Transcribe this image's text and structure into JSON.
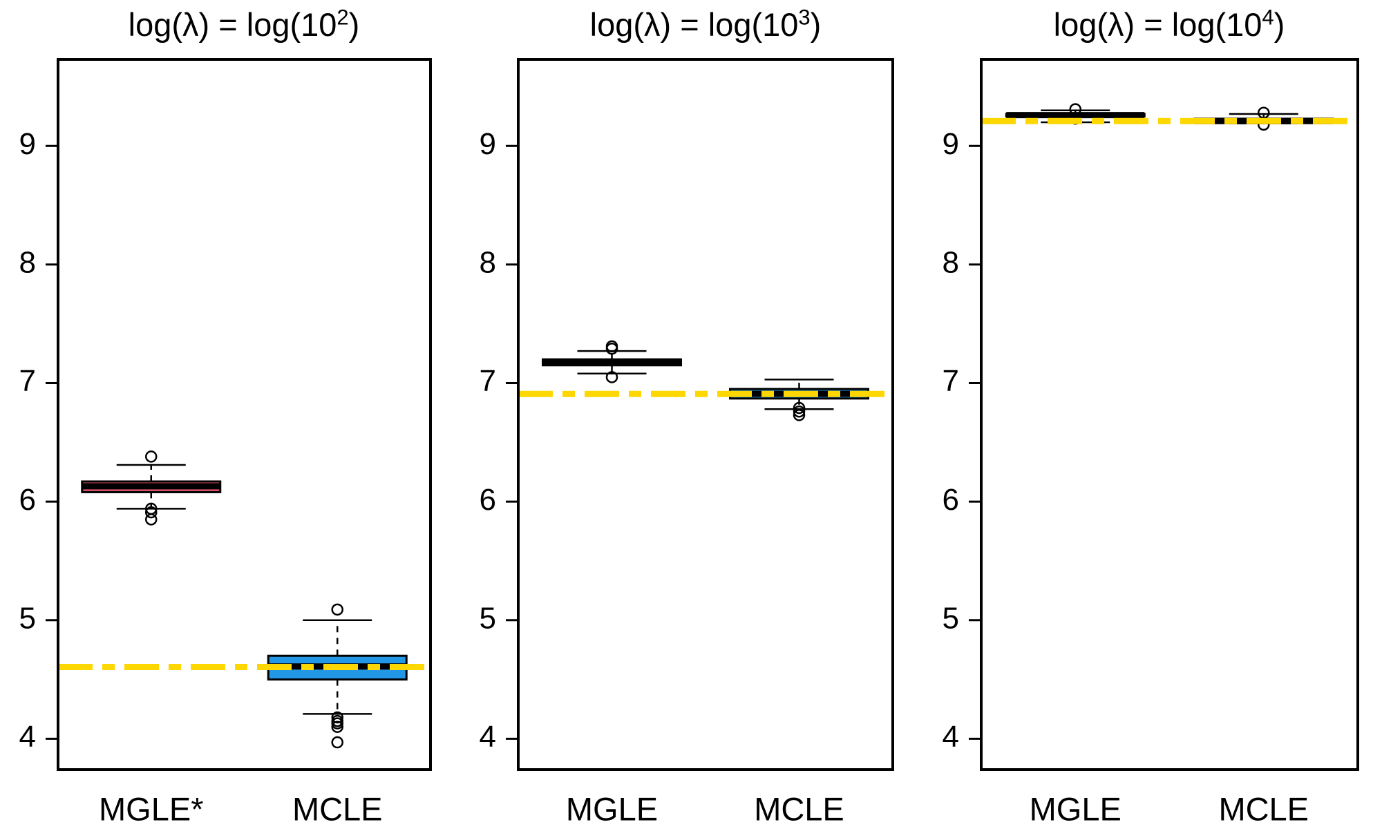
{
  "page": {
    "background": "#ffffff"
  },
  "colors": {
    "mgle_fill": "#DF536B",
    "mcle_fill": "#2297E6",
    "true_line": "#FFD700",
    "box_border": "#000000",
    "median": "#000000",
    "text": "#000000"
  },
  "chart_data": {
    "type": "boxplot",
    "grid": false,
    "legend": false,
    "y_axis": {
      "min": 3.74,
      "max": 9.73,
      "ticks": [
        4,
        5,
        6,
        7,
        8,
        9
      ]
    },
    "panels": [
      {
        "title": {
          "prefix": "log(λ) = log(10",
          "exponent": "2",
          "suffix": ")"
        },
        "true_value": 4.605,
        "categories": [
          "MGLE*",
          "MCLE"
        ],
        "boxes": [
          {
            "label": "MGLE*",
            "color_key": "mgle_fill",
            "median": 6.13,
            "q1": 6.08,
            "q3": 6.17,
            "whisker_low": 5.94,
            "whisker_high": 6.31,
            "outliers": [
              6.38,
              5.94,
              5.91,
              5.85
            ]
          },
          {
            "label": "MCLE",
            "color_key": "mcle_fill",
            "median": 4.61,
            "q1": 4.5,
            "q3": 4.7,
            "whisker_low": 4.21,
            "whisker_high": 5.0,
            "outliers": [
              5.09,
              4.18,
              4.15,
              4.13,
              4.1,
              3.97
            ]
          }
        ]
      },
      {
        "title": {
          "prefix": "log(λ) = log(10",
          "exponent": "3",
          "suffix": ")"
        },
        "true_value": 6.908,
        "categories": [
          "MGLE",
          "MCLE"
        ],
        "boxes": [
          {
            "label": "MGLE",
            "color_key": "mgle_fill",
            "median": 7.17,
            "q1": 7.15,
            "q3": 7.2,
            "whisker_low": 7.08,
            "whisker_high": 7.27,
            "outliers": [
              7.31,
              7.29,
              7.05
            ]
          },
          {
            "label": "MCLE",
            "color_key": "mcle_fill",
            "median": 6.91,
            "q1": 6.87,
            "q3": 6.95,
            "whisker_low": 6.78,
            "whisker_high": 7.03,
            "outliers": [
              6.79,
              6.76,
              6.73
            ]
          }
        ]
      },
      {
        "title": {
          "prefix": "log(λ) = log(10",
          "exponent": "4",
          "suffix": ")"
        },
        "true_value": 9.21,
        "categories": [
          "MGLE",
          "MCLE"
        ],
        "boxes": [
          {
            "label": "MGLE",
            "color_key": "mgle_fill",
            "median": 9.26,
            "q1": 9.25,
            "q3": 9.27,
            "whisker_low": 9.2,
            "whisker_high": 9.3,
            "outliers": [
              9.31,
              9.23
            ]
          },
          {
            "label": "MCLE",
            "color_key": "mcle_fill",
            "median": 9.21,
            "q1": 9.2,
            "q3": 9.23,
            "whisker_low": 9.19,
            "whisker_high": 9.27,
            "outliers": [
              9.28,
              9.18
            ]
          }
        ]
      }
    ]
  }
}
